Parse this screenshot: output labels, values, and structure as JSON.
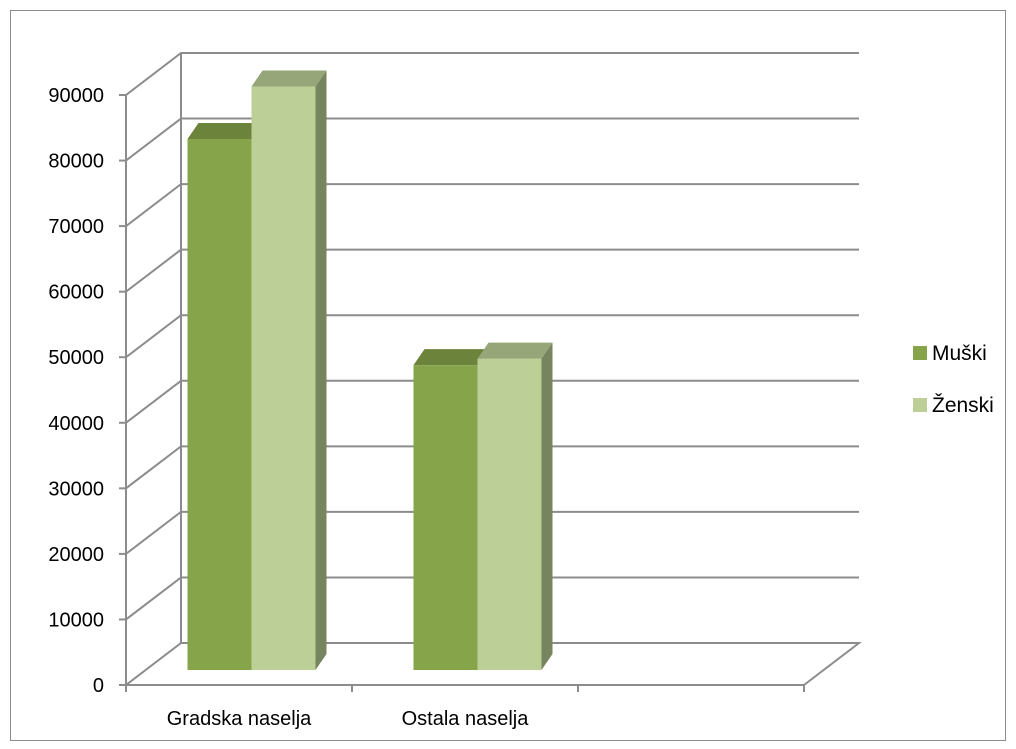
{
  "chart_data": {
    "type": "bar",
    "style": "3d-clustered-column",
    "categories": [
      "Gradska naselja",
      "Ostala naselja",
      ""
    ],
    "series": [
      {
        "name": "Muški",
        "values": [
          81000,
          46500,
          null
        ],
        "color": "#86a44a"
      },
      {
        "name": "Ženski",
        "values": [
          89000,
          47500,
          null
        ],
        "color": "#bccf96"
      }
    ],
    "y_ticks": [
      "0",
      "10000",
      "20000",
      "30000",
      "40000",
      "50000",
      "60000",
      "70000",
      "80000",
      "90000"
    ],
    "ylim": [
      0,
      90000
    ],
    "grid": true,
    "legend": "right",
    "colors": {
      "grid": "#8c8c8c",
      "border": "#8c8c8c",
      "side_shade": "#76855e"
    }
  }
}
